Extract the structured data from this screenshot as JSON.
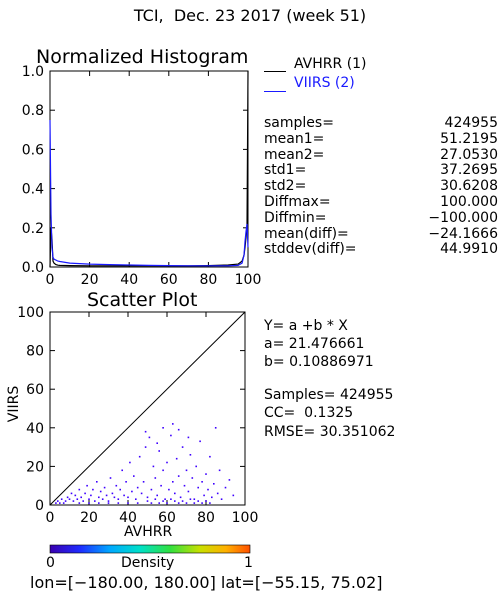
{
  "header": {
    "title": "TCI,  Dec. 23 2017 (week 51)"
  },
  "histogram": {
    "title": "Normalized Histogram",
    "legend": [
      {
        "label": "AVHRR (1)",
        "color": "#000000"
      },
      {
        "label": "VIIRS (2)",
        "color": "#1a1aff"
      }
    ]
  },
  "stats": [
    {
      "label": "samples=",
      "value": "424955"
    },
    {
      "label": "mean1=",
      "value": "51.2195"
    },
    {
      "label": "mean2=",
      "value": "27.0530"
    },
    {
      "label": "std1=",
      "value": "37.2695"
    },
    {
      "label": "std2=",
      "value": "30.6208"
    },
    {
      "label": "Diffmax=",
      "value": "100.000"
    },
    {
      "label": "Diffmin=",
      "value": "−100.000"
    },
    {
      "label": "mean(diff)=",
      "value": "−24.1666"
    },
    {
      "label": "stddev(diff)=",
      "value": "44.9910"
    }
  ],
  "scatter": {
    "title": "Scatter Plot",
    "xlabel": "AVHRR",
    "ylabel": "VIIRS"
  },
  "regression": {
    "equation": "Y= a +b * X",
    "a": "a= 21.476661",
    "b": "b= 0.10886971",
    "samples": "Samples= 424955",
    "cc": "CC=  0.1325",
    "rmse": "RMSE= 30.351062"
  },
  "colorbar": {
    "label": "Density",
    "min": "0",
    "max": "1"
  },
  "footer": {
    "coords": "lon=[−180.00, 180.00] lat=[−55.15, 75.02]"
  },
  "colors": {
    "series1": "#000000",
    "series2": "#1a1aff",
    "scatter_points": "#3d00ff"
  },
  "chart_data": [
    {
      "type": "line",
      "title": "Normalized Histogram",
      "xlabel": "",
      "ylabel": "",
      "xlim": [
        0,
        100
      ],
      "ylim": [
        0,
        1
      ],
      "xticks": [
        0,
        20,
        40,
        60,
        80,
        100
      ],
      "yticks": [
        0.0,
        0.2,
        0.4,
        0.6,
        0.8,
        1.0
      ],
      "series": [
        {
          "name": "AVHRR (1)",
          "x": [
            0,
            0.5,
            1,
            1.5,
            2,
            3,
            4,
            5,
            10,
            20,
            30,
            40,
            50,
            60,
            70,
            80,
            90,
            95,
            97,
            98,
            98.5,
            99,
            99.5,
            100
          ],
          "y": [
            0,
            0.2,
            0.14,
            0.03,
            0.02,
            0.012,
            0.009,
            0.008,
            0.007,
            0.006,
            0.006,
            0.006,
            0.006,
            0.006,
            0.006,
            0.007,
            0.01,
            0.015,
            0.03,
            0.06,
            0.1,
            0.15,
            0.2,
            1.0
          ]
        },
        {
          "name": "VIIRS (2)",
          "x": [
            0,
            0.5,
            1,
            1.5,
            2,
            3,
            4,
            5,
            10,
            20,
            30,
            40,
            50,
            60,
            70,
            80,
            90,
            95,
            97,
            98,
            98.5,
            99,
            99.5,
            100
          ],
          "y": [
            0.75,
            0.27,
            0.1,
            0.05,
            0.04,
            0.035,
            0.03,
            0.028,
            0.02,
            0.015,
            0.012,
            0.01,
            0.008,
            0.007,
            0.006,
            0.006,
            0.006,
            0.008,
            0.02,
            0.06,
            0.13,
            0.18,
            0.22,
            0.1
          ]
        }
      ]
    },
    {
      "type": "scatter",
      "title": "Scatter Plot",
      "xlabel": "AVHRR",
      "ylabel": "VIIRS",
      "xlim": [
        0,
        100
      ],
      "ylim": [
        0,
        100
      ],
      "xticks": [
        0,
        20,
        40,
        60,
        80,
        100
      ],
      "yticks": [
        0,
        20,
        40,
        60,
        80,
        100
      ],
      "reference_line": {
        "x": [
          0,
          100
        ],
        "y": [
          0,
          100
        ]
      },
      "points": [
        [
          8,
          2
        ],
        [
          9,
          4
        ],
        [
          10,
          3
        ],
        [
          11,
          6
        ],
        [
          12,
          2
        ],
        [
          13,
          5
        ],
        [
          14,
          3
        ],
        [
          15,
          8
        ],
        [
          16,
          4
        ],
        [
          17,
          2
        ],
        [
          18,
          6
        ],
        [
          19,
          10
        ],
        [
          20,
          3
        ],
        [
          21,
          5
        ],
        [
          22,
          8
        ],
        [
          23,
          2
        ],
        [
          24,
          12
        ],
        [
          25,
          4
        ],
        [
          26,
          7
        ],
        [
          27,
          3
        ],
        [
          28,
          9
        ],
        [
          29,
          5
        ],
        [
          30,
          2
        ],
        [
          31,
          14
        ],
        [
          32,
          6
        ],
        [
          33,
          4
        ],
        [
          34,
          10
        ],
        [
          35,
          3
        ],
        [
          36,
          8
        ],
        [
          37,
          18
        ],
        [
          38,
          5
        ],
        [
          39,
          12
        ],
        [
          40,
          4
        ],
        [
          41,
          22
        ],
        [
          42,
          7
        ],
        [
          43,
          15
        ],
        [
          44,
          3
        ],
        [
          45,
          9
        ],
        [
          46,
          25
        ],
        [
          47,
          6
        ],
        [
          48,
          12
        ],
        [
          49,
          30
        ],
        [
          50,
          4
        ],
        [
          51,
          35
        ],
        [
          52,
          8
        ],
        [
          53,
          20
        ],
        [
          54,
          14
        ],
        [
          55,
          5
        ],
        [
          56,
          28
        ],
        [
          57,
          10
        ],
        [
          58,
          18
        ],
        [
          59,
          3
        ],
        [
          60,
          22
        ],
        [
          61,
          8
        ],
        [
          62,
          36
        ],
        [
          63,
          12
        ],
        [
          64,
          6
        ],
        [
          65,
          24
        ],
        [
          66,
          15
        ],
        [
          67,
          4
        ],
        [
          68,
          30
        ],
        [
          69,
          10
        ],
        [
          70,
          18
        ],
        [
          71,
          7
        ],
        [
          72,
          26
        ],
        [
          73,
          14
        ],
        [
          74,
          3
        ],
        [
          75,
          20
        ],
        [
          76,
          9
        ],
        [
          77,
          33
        ],
        [
          78,
          12
        ],
        [
          79,
          5
        ],
        [
          80,
          16
        ],
        [
          81,
          8
        ],
        [
          82,
          25
        ],
        [
          83,
          4
        ],
        [
          84,
          11
        ],
        [
          85,
          40
        ],
        [
          86,
          6
        ],
        [
          87,
          18
        ],
        [
          88,
          3
        ],
        [
          90,
          9
        ],
        [
          92,
          13
        ],
        [
          94,
          5
        ],
        [
          50,
          2
        ],
        [
          52,
          1
        ],
        [
          54,
          3
        ],
        [
          56,
          1
        ],
        [
          58,
          2
        ],
        [
          60,
          1
        ],
        [
          62,
          3
        ],
        [
          64,
          2
        ],
        [
          66,
          1
        ],
        [
          68,
          2
        ],
        [
          70,
          1
        ],
        [
          72,
          3
        ],
        [
          74,
          1
        ],
        [
          76,
          2
        ],
        [
          78,
          1
        ],
        [
          80,
          2
        ],
        [
          82,
          1
        ],
        [
          20,
          1
        ],
        [
          25,
          1
        ],
        [
          30,
          1
        ],
        [
          35,
          1
        ],
        [
          40,
          1
        ],
        [
          45,
          1
        ],
        [
          15,
          1
        ],
        [
          5,
          1
        ],
        [
          6,
          3
        ],
        [
          7,
          1
        ],
        [
          3,
          1
        ],
        [
          4,
          2
        ],
        [
          58,
          40
        ],
        [
          63,
          42
        ],
        [
          49,
          38
        ],
        [
          71,
          35
        ],
        [
          66,
          39
        ],
        [
          55,
          32
        ]
      ]
    }
  ]
}
